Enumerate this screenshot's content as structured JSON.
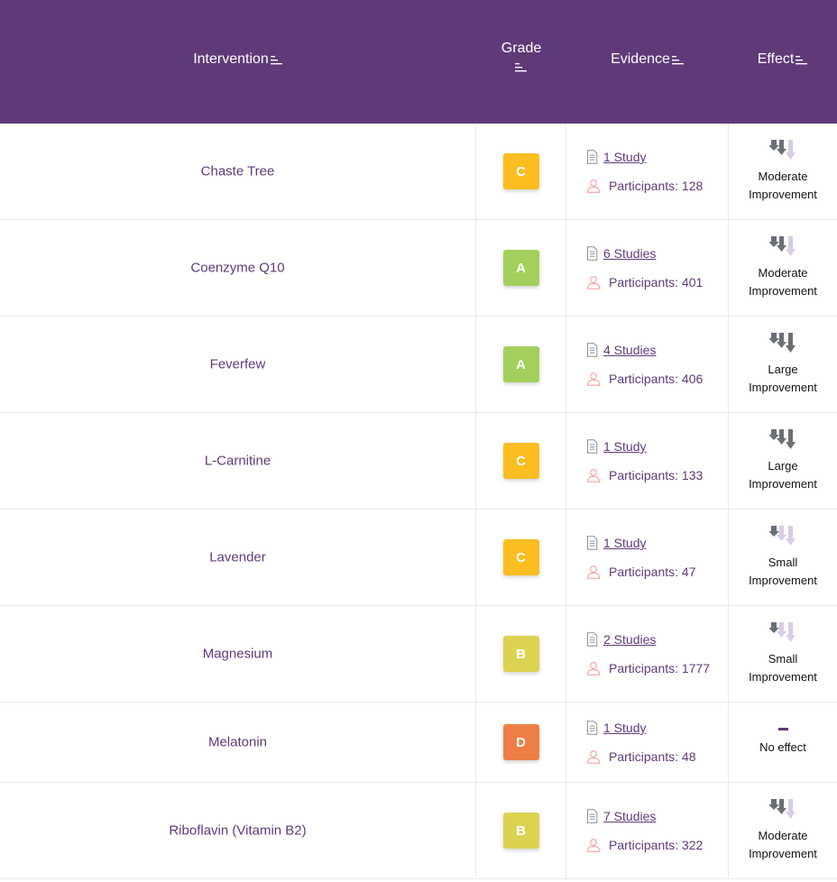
{
  "header": {
    "intervention": "Intervention",
    "grade": "Grade",
    "evidence": "Evidence",
    "effect": "Effect",
    "sort_icon": "sort-icon"
  },
  "colors": {
    "header_bg": "#5e3a78",
    "grade_A": "#a3d05c",
    "grade_B": "#dcd351",
    "grade_C": "#fbbd1f",
    "grade_D": "#ec7f46",
    "arrow_dark": "#6b6f76",
    "arrow_light": "#d9cde3"
  },
  "rows": [
    {
      "intervention": "Chaste Tree",
      "grade": "C",
      "studies": "1 Study",
      "participants": "Participants: 128",
      "effect_line1": "Moderate",
      "effect_line2": "Improvement",
      "effect_level": 2
    },
    {
      "intervention": "Coenzyme Q10",
      "grade": "A",
      "studies": "6 Studies",
      "participants": "Participants: 401",
      "effect_line1": "Moderate",
      "effect_line2": "Improvement",
      "effect_level": 2
    },
    {
      "intervention": "Feverfew",
      "grade": "A",
      "studies": "4 Studies",
      "participants": "Participants: 406",
      "effect_line1": "Large",
      "effect_line2": "Improvement",
      "effect_level": 3
    },
    {
      "intervention": "L-Carnitine",
      "grade": "C",
      "studies": "1 Study",
      "participants": "Participants: 133",
      "effect_line1": "Large",
      "effect_line2": "Improvement",
      "effect_level": 3
    },
    {
      "intervention": "Lavender",
      "grade": "C",
      "studies": "1 Study",
      "participants": "Participants: 47",
      "effect_line1": "Small",
      "effect_line2": "Improvement",
      "effect_level": 1
    },
    {
      "intervention": "Magnesium",
      "grade": "B",
      "studies": "2 Studies",
      "participants": "Participants: 1777",
      "effect_line1": "Small",
      "effect_line2": "Improvement",
      "effect_level": 1
    },
    {
      "intervention": "Melatonin",
      "grade": "D",
      "studies": "1 Study",
      "participants": "Participants: 48",
      "effect_line1": "No effect",
      "effect_line2": "",
      "effect_level": 0
    },
    {
      "intervention": "Riboflavin (Vitamin B2)",
      "grade": "B",
      "studies": "7 Studies",
      "participants": "Participants: 322",
      "effect_line1": "Moderate",
      "effect_line2": "Improvement",
      "effect_level": 2
    }
  ]
}
